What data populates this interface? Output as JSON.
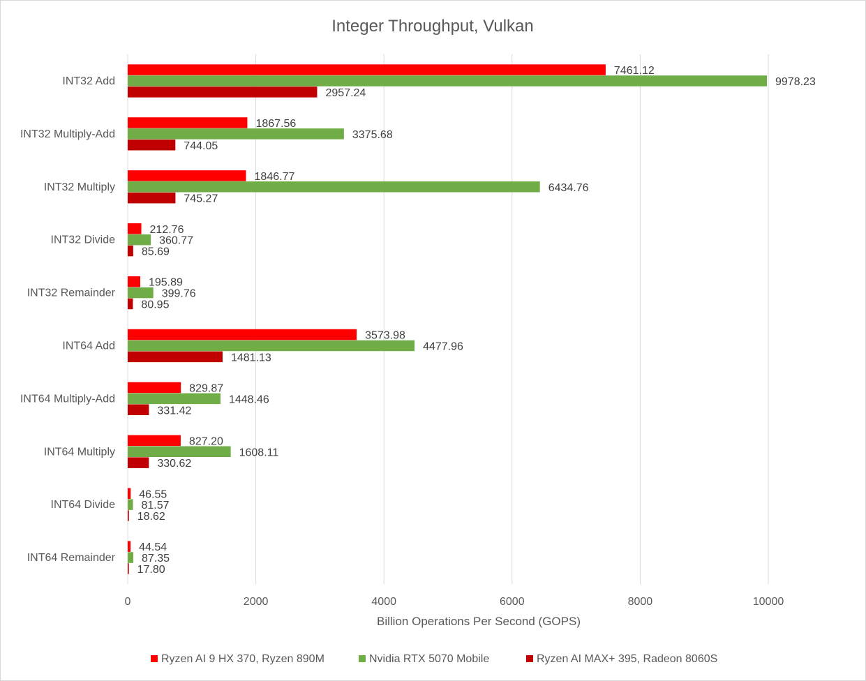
{
  "chart_data": {
    "type": "bar",
    "orientation": "horizontal",
    "title": "Integer Throughput, Vulkan",
    "xlabel": "Billion Operations Per Second (GOPS)",
    "ylabel": "",
    "xlim": [
      0,
      10000
    ],
    "xticks": [
      0,
      2000,
      4000,
      6000,
      8000,
      10000
    ],
    "xtick_labels": [
      "0",
      "2000",
      "4000",
      "6000",
      "8000",
      "10000"
    ],
    "grid": "vertical",
    "legend_position": "bottom",
    "categories": [
      "INT32 Add",
      "INT32 Multiply-Add",
      "INT32 Multiply",
      "INT32 Divide",
      "INT32 Remainder",
      "INT64 Add",
      "INT64 Multiply-Add",
      "INT64 Multiply",
      "INT64 Divide",
      "INT64 Remainder"
    ],
    "series": [
      {
        "name": "Ryzen AI 9 HX 370, Ryzen 890M",
        "color": "#ff0000",
        "values": [
          7461.12,
          1867.56,
          1846.77,
          212.76,
          195.89,
          3573.98,
          829.87,
          827.2,
          46.55,
          44.54
        ],
        "labels": [
          "7461.12",
          "1867.56",
          "1846.77",
          "212.76",
          "195.89",
          "3573.98",
          "829.87",
          "827.20",
          "46.55",
          "44.54"
        ]
      },
      {
        "name": "Nvidia RTX 5070 Mobile",
        "color": "#70ad47",
        "values": [
          9978.23,
          3375.68,
          6434.76,
          360.77,
          399.76,
          4477.96,
          1448.46,
          1608.11,
          81.57,
          87.35
        ],
        "labels": [
          "9978.23",
          "3375.68",
          "6434.76",
          "360.77",
          "399.76",
          "4477.96",
          "1448.46",
          "1608.11",
          "81.57",
          "87.35"
        ]
      },
      {
        "name": "Ryzen AI MAX+ 395, Radeon 8060S",
        "color": "#c00000",
        "values": [
          2957.24,
          744.05,
          745.27,
          85.69,
          80.95,
          1481.13,
          331.42,
          330.62,
          18.62,
          17.8
        ],
        "labels": [
          "2957.24",
          "744.05",
          "745.27",
          "85.69",
          "80.95",
          "1481.13",
          "331.42",
          "330.62",
          "18.62",
          "17.80"
        ]
      }
    ]
  }
}
